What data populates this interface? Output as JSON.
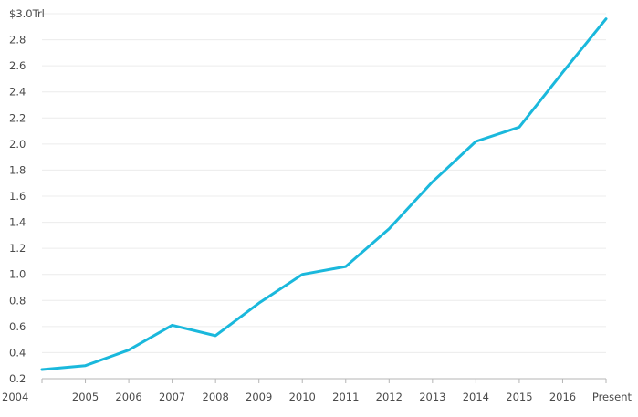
{
  "chart_data": {
    "type": "line",
    "title": "",
    "xlabel": "",
    "ylabel": "",
    "categories": [
      "2004",
      "2005",
      "2006",
      "2007",
      "2008",
      "2009",
      "2010",
      "2011",
      "2012",
      "2013",
      "2014",
      "2015",
      "2016",
      "Present"
    ],
    "series": [
      {
        "values": [
          0.27,
          0.3,
          0.42,
          0.61,
          0.53,
          0.78,
          1.0,
          1.06,
          1.35,
          1.71,
          2.02,
          2.13,
          2.55,
          2.96
        ],
        "color": "#1ab8dc"
      }
    ],
    "ylim": [
      0.2,
      3.0
    ],
    "yticks": [
      0.2,
      0.4,
      0.6,
      0.8,
      1.0,
      1.2,
      1.4,
      1.6,
      1.8,
      2.0,
      2.2,
      2.4,
      2.6,
      2.8,
      3.0
    ],
    "ytick_labels": [
      "0.2",
      "0.4",
      "0.6",
      "0.8",
      "1.0",
      "1.2",
      "1.4",
      "1.6",
      "1.8",
      "2.0",
      "2.2",
      "2.4",
      "2.6",
      "2.8",
      "$3.0Trl"
    ],
    "grid": "horizontal",
    "legend": "none",
    "colors": {
      "grid": "#ececec",
      "axis": "#b5b5b5",
      "text": "#4a4a4a"
    }
  }
}
